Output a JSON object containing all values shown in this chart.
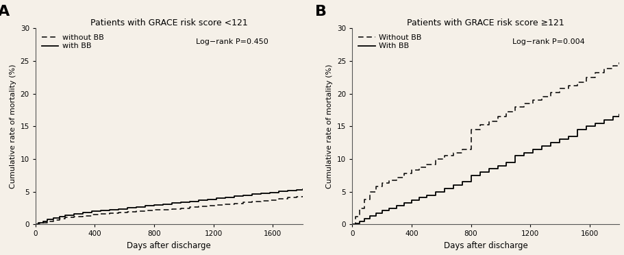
{
  "background_color": "#f5f0e8",
  "panel_A": {
    "title": "Patients with GRACE risk score <121",
    "label": "A",
    "logrank": "Log−rank P=0.450",
    "ylim": [
      0,
      30
    ],
    "xlim": [
      0,
      1800
    ],
    "yticks": [
      0,
      5,
      10,
      15,
      20,
      25,
      30
    ],
    "xticks": [
      0,
      400,
      800,
      1200,
      1600
    ],
    "ylabel": "Cumulative rate of mortality (%)",
    "xlabel": "Days after discharge",
    "legend_without": "without BB",
    "legend_with": "with BB",
    "without_BB_x": [
      0,
      20,
      50,
      80,
      120,
      160,
      200,
      260,
      320,
      380,
      440,
      500,
      560,
      620,
      680,
      740,
      800,
      860,
      920,
      980,
      1040,
      1100,
      1160,
      1220,
      1280,
      1340,
      1400,
      1460,
      1520,
      1580,
      1640,
      1700,
      1760,
      1800
    ],
    "without_BB_y": [
      0,
      0.15,
      0.3,
      0.5,
      0.7,
      0.9,
      1.05,
      1.2,
      1.35,
      1.5,
      1.6,
      1.7,
      1.8,
      1.9,
      2.0,
      2.1,
      2.2,
      2.3,
      2.4,
      2.5,
      2.65,
      2.75,
      2.85,
      2.95,
      3.05,
      3.2,
      3.4,
      3.5,
      3.6,
      3.7,
      3.9,
      4.1,
      4.2,
      4.3
    ],
    "with_BB_x": [
      0,
      20,
      50,
      80,
      120,
      160,
      200,
      260,
      320,
      380,
      440,
      500,
      560,
      620,
      680,
      740,
      800,
      860,
      920,
      980,
      1040,
      1100,
      1160,
      1220,
      1280,
      1340,
      1400,
      1460,
      1520,
      1580,
      1640,
      1700,
      1760,
      1800
    ],
    "with_BB_y": [
      0,
      0.25,
      0.5,
      0.75,
      1.0,
      1.2,
      1.4,
      1.6,
      1.8,
      2.0,
      2.1,
      2.25,
      2.4,
      2.55,
      2.7,
      2.85,
      3.0,
      3.1,
      3.25,
      3.4,
      3.55,
      3.7,
      3.85,
      4.0,
      4.15,
      4.3,
      4.5,
      4.65,
      4.8,
      4.9,
      5.05,
      5.15,
      5.25,
      5.4
    ]
  },
  "panel_B": {
    "title": "Patients with GRACE risk score ≥121",
    "label": "B",
    "logrank": "Log−rank P=0.004",
    "ylim": [
      0,
      30
    ],
    "xlim": [
      0,
      1800
    ],
    "yticks": [
      0,
      5,
      10,
      15,
      20,
      25,
      30
    ],
    "xticks": [
      0,
      400,
      800,
      1200,
      1600
    ],
    "ylabel": "Cumulative rate of mortality (%)",
    "xlabel": "Days after discharge",
    "legend_without": "Without BB",
    "legend_with": "With BB",
    "without_BB_x": [
      0,
      20,
      50,
      80,
      120,
      160,
      200,
      250,
      300,
      350,
      400,
      450,
      500,
      560,
      620,
      680,
      740,
      800,
      860,
      920,
      980,
      1040,
      1100,
      1160,
      1220,
      1280,
      1340,
      1400,
      1460,
      1520,
      1580,
      1640,
      1700,
      1760,
      1800
    ],
    "without_BB_y": [
      0,
      1.2,
      2.5,
      3.8,
      5.0,
      5.8,
      6.3,
      6.8,
      7.2,
      7.8,
      8.3,
      8.8,
      9.2,
      10.0,
      10.5,
      11.0,
      11.5,
      14.5,
      15.2,
      15.8,
      16.5,
      17.2,
      18.0,
      18.5,
      19.0,
      19.5,
      20.2,
      20.8,
      21.2,
      21.8,
      22.5,
      23.2,
      23.8,
      24.3,
      24.8
    ],
    "with_BB_x": [
      0,
      20,
      50,
      80,
      120,
      160,
      200,
      250,
      300,
      350,
      400,
      450,
      500,
      560,
      620,
      680,
      740,
      800,
      860,
      920,
      980,
      1040,
      1100,
      1160,
      1220,
      1280,
      1340,
      1400,
      1460,
      1520,
      1580,
      1640,
      1700,
      1760,
      1800
    ],
    "with_BB_y": [
      0,
      0.2,
      0.5,
      0.9,
      1.3,
      1.7,
      2.1,
      2.5,
      2.9,
      3.3,
      3.7,
      4.1,
      4.5,
      5.0,
      5.5,
      6.0,
      6.5,
      7.5,
      8.0,
      8.5,
      9.0,
      9.5,
      10.5,
      11.0,
      11.5,
      12.0,
      12.5,
      13.0,
      13.5,
      14.5,
      15.0,
      15.5,
      16.0,
      16.5,
      16.8
    ]
  }
}
